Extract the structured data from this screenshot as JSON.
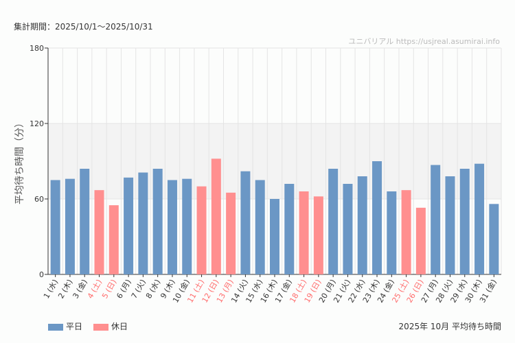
{
  "header": {
    "period": "集計期間：2025/10/1〜2025/10/31",
    "credit": "ユニバリアル  https://usjreal.asumirai.info"
  },
  "footer": {
    "title": "2025年 10月 平均待ち時間"
  },
  "colors": {
    "weekday": "#6b97c5",
    "holiday": "#ff8f8f",
    "holiday_label": "#ff6b6b",
    "band": "#f3f3f3",
    "grid": "#e4e4e4"
  },
  "chart_data": {
    "type": "bar",
    "title": "2025年 10月 平均待ち時間",
    "ylabel": "平均待ち時間（分）",
    "xlabel": "",
    "ylim": [
      0,
      180
    ],
    "yticks": [
      0,
      60,
      120,
      180
    ],
    "band": [
      60,
      120
    ],
    "legend": [
      {
        "name": "平日",
        "key": "weekday"
      },
      {
        "name": "休日",
        "key": "holiday"
      }
    ],
    "legend_position": "bottom-left",
    "categories": [
      "1 (水)",
      "2 (木)",
      "3 (金)",
      "4 (土)",
      "5 (日)",
      "6 (月)",
      "7 (火)",
      "8 (水)",
      "9 (木)",
      "10 (金)",
      "11 (土)",
      "12 (日)",
      "13 (月)",
      "14 (火)",
      "15 (水)",
      "16 (木)",
      "17 (金)",
      "18 (土)",
      "19 (日)",
      "20 (月)",
      "21 (火)",
      "22 (水)",
      "23 (木)",
      "24 (金)",
      "25 (土)",
      "26 (日)",
      "27 (月)",
      "28 (火)",
      "29 (水)",
      "30 (木)",
      "31 (金)"
    ],
    "values": [
      75,
      76,
      84,
      67,
      55,
      77,
      81,
      84,
      75,
      76,
      70,
      92,
      65,
      82,
      75,
      60,
      72,
      66,
      62,
      84,
      72,
      78,
      90,
      66,
      67,
      53,
      87,
      78,
      84,
      88,
      56
    ],
    "holiday": [
      false,
      false,
      false,
      true,
      true,
      false,
      false,
      false,
      false,
      false,
      true,
      true,
      true,
      false,
      false,
      false,
      false,
      true,
      true,
      false,
      false,
      false,
      false,
      false,
      true,
      true,
      false,
      false,
      false,
      false,
      false
    ]
  }
}
